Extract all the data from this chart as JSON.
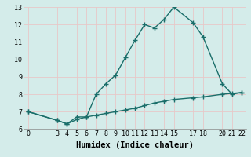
{
  "xlabel": "Humidex (Indice chaleur)",
  "ylabel": "",
  "background_color": "#d4ecea",
  "grid_color": "#e8c8c8",
  "line_color": "#1a6e6a",
  "xlim": [
    -0.5,
    22.5
  ],
  "ylim": [
    6,
    13
  ],
  "yticks": [
    6,
    7,
    8,
    9,
    10,
    11,
    12,
    13
  ],
  "xticks": [
    0,
    3,
    4,
    5,
    6,
    7,
    8,
    9,
    10,
    11,
    12,
    13,
    14,
    15,
    17,
    18,
    20,
    21,
    22
  ],
  "xtick_labels": [
    "0",
    "3",
    "4",
    "5",
    "6",
    "7",
    "8",
    "9",
    "10",
    "11",
    "12",
    "13",
    "14",
    "15",
    "17",
    "18",
    "20",
    "21",
    "22"
  ],
  "line1_x": [
    0,
    3,
    4,
    5,
    6,
    7,
    8,
    9,
    10,
    11,
    12,
    13,
    14,
    15,
    17,
    18,
    20,
    21,
    22
  ],
  "line1_y": [
    7.0,
    6.5,
    6.3,
    6.7,
    6.7,
    8.0,
    8.6,
    9.1,
    10.1,
    11.1,
    12.0,
    11.8,
    12.3,
    13.0,
    12.1,
    11.3,
    8.6,
    8.0,
    8.1
  ],
  "line2_x": [
    0,
    3,
    4,
    5,
    6,
    7,
    8,
    9,
    10,
    11,
    12,
    13,
    14,
    15,
    17,
    18,
    20,
    21,
    22
  ],
  "line2_y": [
    7.0,
    6.5,
    6.3,
    6.55,
    6.7,
    6.8,
    6.9,
    7.0,
    7.1,
    7.2,
    7.35,
    7.5,
    7.6,
    7.7,
    7.8,
    7.85,
    8.0,
    8.05,
    8.1
  ],
  "marker_size": 3.5,
  "line_width": 1.0,
  "tick_fontsize": 6,
  "xlabel_fontsize": 7.5
}
